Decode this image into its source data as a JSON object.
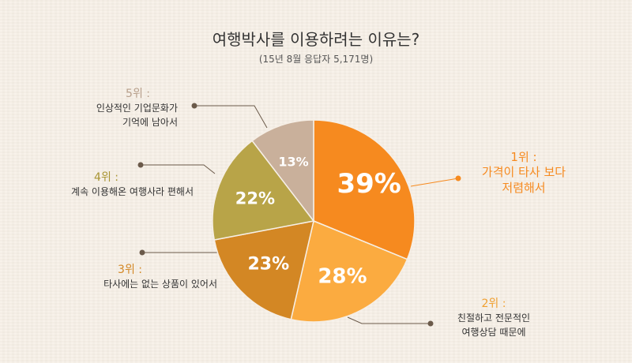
{
  "title": "여행박사를 이용하려는 이유는?",
  "subtitle": "(15년 8월 응답자 5,171명)",
  "chart_data": {
    "type": "pie",
    "slices": [
      {
        "rank": "1위 :",
        "label": [
          "가격이 타사 보다",
          "저렴해서"
        ],
        "value": 39,
        "pct": "39%",
        "color": "#f68a1f",
        "text_color": "#f68a1f"
      },
      {
        "rank": "2위 :",
        "label": [
          "친절하고 전문적인",
          "여행상담 때문에"
        ],
        "value": 28,
        "pct": "28%",
        "color": "#fbab40",
        "text_color": "#f0a030"
      },
      {
        "rank": "3위 :",
        "label": [
          "타사에는 없는 상품이 있어서"
        ],
        "value": 23,
        "pct": "23%",
        "color": "#d38724",
        "text_color": "#d38724"
      },
      {
        "rank": "4위 :",
        "label": [
          "계속 이용해온 여행사라 편해서"
        ],
        "value": 22,
        "pct": "22%",
        "color": "#b8a448",
        "text_color": "#a99533"
      },
      {
        "rank": "5위 :",
        "label": [
          "인상적인 기업문화가",
          "기억에 남아서"
        ],
        "value": 13,
        "pct": "13%",
        "color": "#c9b09b",
        "text_color": "#b8a08c"
      }
    ]
  }
}
